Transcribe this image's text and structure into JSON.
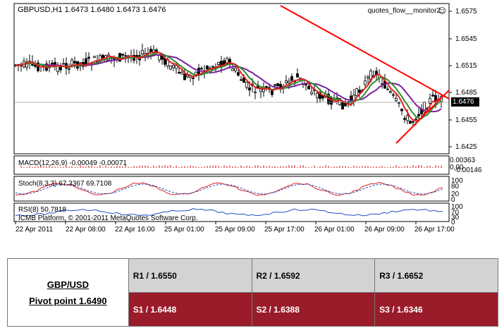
{
  "chart": {
    "header": "GBPUSD,H1  1.6473 1.6480 1.6473 1.6476",
    "indicator_name": "quotes_flow__monitor2",
    "smiley": "☺",
    "price_levels": [
      "1.6575",
      "1.6545",
      "1.6515",
      "1.6485",
      "1.6455",
      "1.6425"
    ],
    "current_price": "1.6476",
    "time_labels": [
      "22 Apr 2011",
      "22 Apr 08:00",
      "22 Apr 16:00",
      "25 Apr 01:00",
      "25 Apr 09:00",
      "25 Apr 17:00",
      "26 Apr 01:00",
      "26 Apr 09:00",
      "26 Apr 17:00"
    ],
    "macd": {
      "label": "MACD(12,26,9) -0.00049 -0.00071",
      "levels": [
        "0.00363",
        "0.00",
        "-0.00146"
      ]
    },
    "stoch": {
      "label": "Stoch(8,3,3) 67.3367 69.7108",
      "levels": [
        "100",
        "80",
        "20",
        "0"
      ]
    },
    "rsi": {
      "label": "RSI(8) 50.7818",
      "levels": [
        "100",
        "70",
        "30",
        "0"
      ]
    },
    "copyright": "ICMB Platform, © 2001-2011 MetaQuotes Software Corp."
  },
  "pivot": {
    "pair": "GBP/USD",
    "pivot_point": "Pivot point 1.6490",
    "resistance": [
      "R1 / 1.6550",
      "R2 / 1.6592",
      "R3 / 1.6652"
    ],
    "support": [
      "S1 / 1.6448",
      "S2 / 1.6388",
      "S3 / 1.6346"
    ],
    "resistance_color": "#d3d3d3",
    "support_color": "#9a1c2a"
  }
}
